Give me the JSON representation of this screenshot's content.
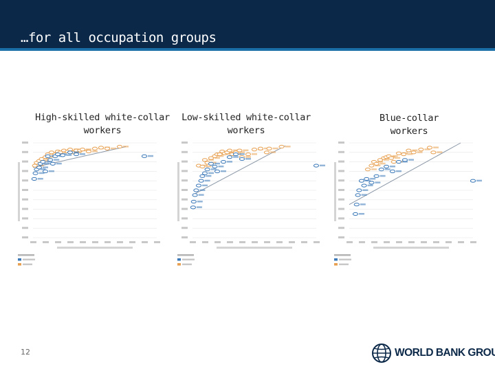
{
  "slide": {
    "title": "…for all occupation groups",
    "slide_number": "12",
    "logo_text": "WORLD BANK GROUP"
  },
  "colors": {
    "header": "#0b2848",
    "accent": "#1a6fa8",
    "non_oecd": "#e8a050",
    "oecd": "#3a78b8",
    "fit_line": "#8a96a6"
  },
  "chart_data": [
    {
      "type": "scatter",
      "title": "High-skilled white-collar\nworkers",
      "xlim": [
        0,
        100000
      ],
      "ylim": [
        0,
        100
      ],
      "ticks_y": [
        0,
        10,
        20,
        30,
        40,
        50,
        60,
        70,
        80,
        90,
        100
      ],
      "ticks_x": [
        0,
        10000,
        20000,
        30000,
        40000,
        50000,
        60000,
        70000,
        80000,
        90000,
        100000
      ],
      "series": [
        {
          "color": "#e8a050",
          "points": [
            [
              1500,
              76
            ],
            [
              3000,
              79
            ],
            [
              5000,
              81
            ],
            [
              7000,
              83
            ],
            [
              10000,
              85
            ],
            [
              12000,
              88
            ],
            [
              15000,
              90
            ],
            [
              18000,
              88
            ],
            [
              20000,
              91
            ],
            [
              22000,
              90
            ],
            [
              25000,
              92
            ],
            [
              28000,
              91
            ],
            [
              30000,
              93
            ],
            [
              32000,
              90
            ],
            [
              35000,
              92
            ],
            [
              38000,
              92
            ],
            [
              40000,
              93
            ],
            [
              45000,
              91
            ],
            [
              50000,
              94
            ],
            [
              55000,
              95
            ],
            [
              60000,
              94
            ],
            [
              70000,
              96
            ]
          ]
        },
        {
          "color": "#3a78b8",
          "points": [
            [
              1000,
              62
            ],
            [
              2000,
              68
            ],
            [
              3000,
              72
            ],
            [
              5000,
              74
            ],
            [
              6000,
              78
            ],
            [
              8000,
              80
            ],
            [
              10000,
              70
            ],
            [
              12000,
              86
            ],
            [
              14000,
              82
            ],
            [
              16000,
              78
            ],
            [
              18000,
              86
            ],
            [
              20000,
              88
            ],
            [
              24000,
              87
            ],
            [
              30000,
              90
            ],
            [
              35000,
              88
            ],
            [
              90000,
              86
            ]
          ]
        }
      ],
      "fit_line": [
        [
          0,
          74
        ],
        [
          75000,
          96
        ]
      ]
    },
    {
      "type": "scatter",
      "title": "Low-skilled white-collar\nworkers",
      "xlim": [
        0,
        100000
      ],
      "ylim": [
        0,
        100
      ],
      "ticks_y": [
        0,
        10,
        20,
        30,
        40,
        50,
        60,
        70,
        80,
        90,
        100
      ],
      "ticks_x": [
        0,
        10000,
        20000,
        30000,
        40000,
        50000,
        60000,
        70000,
        80000,
        90000,
        100000
      ],
      "series": [
        {
          "color": "#e8a050",
          "points": [
            [
              5000,
              76
            ],
            [
              8000,
              75
            ],
            [
              10000,
              82
            ],
            [
              12000,
              79
            ],
            [
              15000,
              84
            ],
            [
              18000,
              86
            ],
            [
              20000,
              88
            ],
            [
              22000,
              88
            ],
            [
              24000,
              91
            ],
            [
              26000,
              89
            ],
            [
              28000,
              90
            ],
            [
              30000,
              92
            ],
            [
              32000,
              88
            ],
            [
              35000,
              90
            ],
            [
              38000,
              92
            ],
            [
              40000,
              85
            ],
            [
              45000,
              88
            ],
            [
              50000,
              93
            ],
            [
              55000,
              94
            ],
            [
              60000,
              90
            ],
            [
              62000,
              94
            ],
            [
              72000,
              96
            ]
          ]
        },
        {
          "color": "#3a78b8",
          "points": [
            [
              500,
              32
            ],
            [
              1000,
              38
            ],
            [
              2000,
              45
            ],
            [
              3000,
              50
            ],
            [
              5000,
              55
            ],
            [
              7000,
              60
            ],
            [
              8000,
              65
            ],
            [
              10000,
              68
            ],
            [
              12000,
              72
            ],
            [
              15000,
              78
            ],
            [
              18000,
              75
            ],
            [
              20000,
              70
            ],
            [
              25000,
              80
            ],
            [
              30000,
              85
            ],
            [
              35000,
              88
            ],
            [
              40000,
              83
            ],
            [
              100000,
              76
            ]
          ]
        }
      ],
      "fit_line": [
        [
          0,
          45
        ],
        [
          75000,
          97
        ]
      ]
    },
    {
      "type": "scatter",
      "title": "Blue-collar\nworkers",
      "xlim": [
        0,
        100000
      ],
      "ylim": [
        0,
        100
      ],
      "ticks_y": [
        0,
        10,
        20,
        30,
        40,
        50,
        60,
        70,
        80,
        90,
        100
      ],
      "ticks_x": [
        0,
        10000,
        20000,
        30000,
        40000,
        50000,
        60000,
        70000,
        80000,
        90000,
        100000
      ],
      "series": [
        {
          "color": "#e8a050",
          "points": [
            [
              15000,
              72
            ],
            [
              18000,
              76
            ],
            [
              20000,
              80
            ],
            [
              22000,
              78
            ],
            [
              25000,
              82
            ],
            [
              28000,
              84
            ],
            [
              30000,
              85
            ],
            [
              32000,
              86
            ],
            [
              34000,
              84
            ],
            [
              36000,
              80
            ],
            [
              40000,
              89
            ],
            [
              44000,
              88
            ],
            [
              48000,
              92
            ],
            [
              52000,
              90
            ],
            [
              58000,
              93
            ],
            [
              65000,
              95
            ],
            [
              68000,
              90
            ]
          ]
        },
        {
          "color": "#3a78b8",
          "points": [
            [
              5000,
              25
            ],
            [
              6000,
              35
            ],
            [
              7000,
              45
            ],
            [
              8000,
              50
            ],
            [
              10000,
              60
            ],
            [
              12000,
              55
            ],
            [
              14000,
              62
            ],
            [
              18000,
              58
            ],
            [
              22000,
              65
            ],
            [
              26000,
              72
            ],
            [
              30000,
              75
            ],
            [
              35000,
              70
            ],
            [
              40000,
              80
            ],
            [
              45000,
              82
            ],
            [
              100000,
              60
            ]
          ]
        }
      ],
      "fit_line": [
        [
          0,
          35
        ],
        [
          90000,
          100
        ]
      ]
    }
  ]
}
